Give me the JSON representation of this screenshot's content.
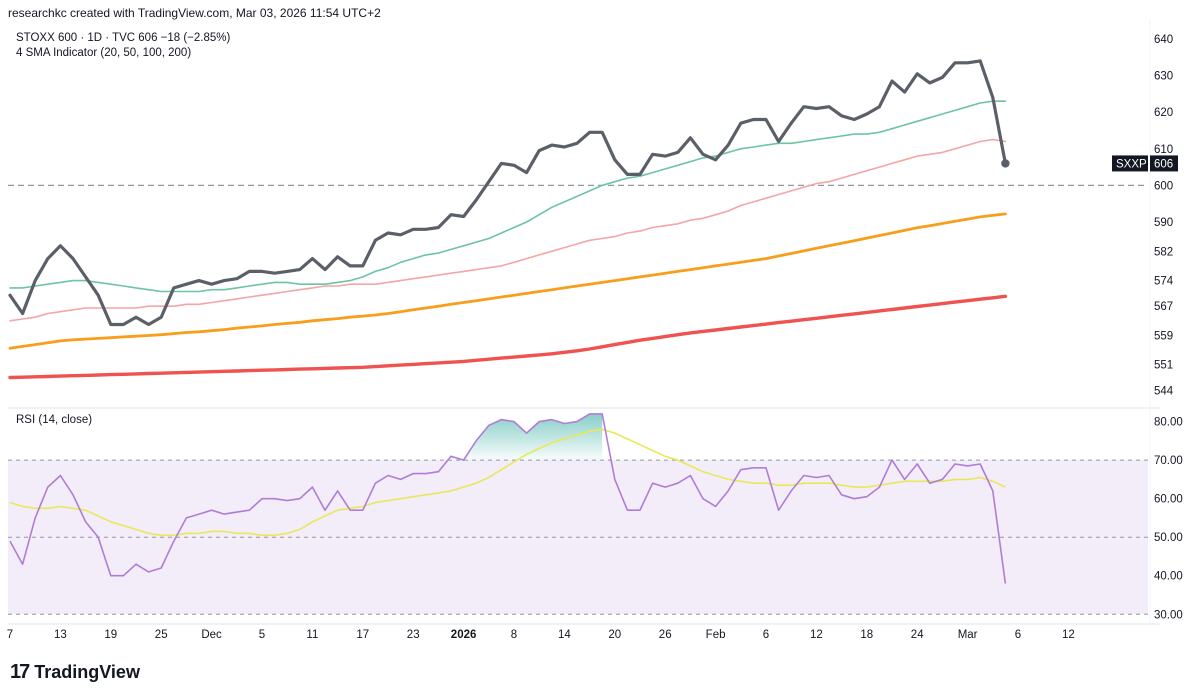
{
  "credit": "researchkc created with TradingView.com, Mar 03, 2026 11:54 UTC+2",
  "legend": {
    "symbol_line": "STOXX 600 · 1D · TVC  606  −18 (−2.85%)",
    "indicator_line": "4 SMA Indicator (20, 50, 100, 200)",
    "rsi_line": "RSI (14, close)"
  },
  "brand": {
    "name": "TradingView",
    "mark": "17"
  },
  "colors": {
    "price": "#5b5f68",
    "sma20": "#6cc4a4",
    "sma50": "#f4a6a6",
    "sma100": "#f79e1b",
    "sma200": "#ef5350",
    "rsi": "#b07dd6",
    "rsi_ma": "#e8e85a",
    "rsi_band": "#ede7f6"
  },
  "chart_data": [
    {
      "type": "line",
      "title": "STOXX 600 · 1D · TVC",
      "last_label": {
        "symbol": "SXXP",
        "value": "606"
      },
      "ylim": [
        540,
        643
      ],
      "y_ticks": [
        640,
        630,
        620,
        610,
        600,
        590,
        582,
        574,
        567,
        559,
        551,
        544
      ],
      "reference_line": 600,
      "x_ticks": [
        {
          "i": 0,
          "label": "7"
        },
        {
          "i": 4,
          "label": "13"
        },
        {
          "i": 8,
          "label": "19"
        },
        {
          "i": 12,
          "label": "25"
        },
        {
          "i": 16,
          "label": "Dec"
        },
        {
          "i": 20,
          "label": "5"
        },
        {
          "i": 24,
          "label": "11"
        },
        {
          "i": 28,
          "label": "17"
        },
        {
          "i": 32,
          "label": "23"
        },
        {
          "i": 36,
          "label": "2026"
        },
        {
          "i": 40,
          "label": "8"
        },
        {
          "i": 44,
          "label": "14"
        },
        {
          "i": 48,
          "label": "20"
        },
        {
          "i": 52,
          "label": "26"
        },
        {
          "i": 56,
          "label": "Feb"
        },
        {
          "i": 60,
          "label": "6"
        },
        {
          "i": 64,
          "label": "12"
        },
        {
          "i": 68,
          "label": "18"
        },
        {
          "i": 72,
          "label": "24"
        },
        {
          "i": 76,
          "label": "Mar"
        },
        {
          "i": 80,
          "label": "6"
        },
        {
          "i": 84,
          "label": "12"
        }
      ],
      "series": [
        {
          "name": "STOXX 600",
          "values": [
            570,
            565,
            574,
            580,
            583.5,
            580,
            575,
            570,
            562,
            562,
            564,
            562,
            564,
            572,
            573,
            574,
            573,
            574,
            574.5,
            576.5,
            576.5,
            576,
            576.5,
            577,
            580,
            577,
            580.5,
            578,
            578,
            585,
            587,
            586.5,
            588,
            588,
            588.5,
            592,
            591.5,
            596,
            601,
            606,
            605.5,
            603.5,
            609.5,
            611,
            610.5,
            611.5,
            614.5,
            614.5,
            607,
            603,
            603,
            608.5,
            608,
            609,
            613,
            608.5,
            607,
            611,
            617,
            618,
            618,
            612,
            617,
            621.5,
            621,
            621.5,
            619,
            618,
            619.5,
            621.5,
            628.5,
            625.5,
            630.5,
            628,
            629.5,
            633.5,
            633.5,
            634,
            624,
            606
          ]
        },
        {
          "name": "SMA 20",
          "values": [
            572,
            572,
            572.5,
            573,
            573.5,
            574,
            574,
            573.5,
            573,
            572.5,
            572,
            571.5,
            571,
            571,
            571,
            571,
            571.5,
            571.5,
            572,
            572.5,
            573,
            573.5,
            573.5,
            573,
            573,
            573,
            573.5,
            574,
            575,
            576.5,
            577.5,
            579,
            580,
            581,
            581.5,
            582.5,
            583.5,
            584.5,
            585.5,
            587,
            588.5,
            590,
            592,
            594,
            595.5,
            597,
            598.5,
            600,
            601,
            602,
            602.5,
            603.5,
            604.5,
            605.5,
            606.5,
            607.5,
            608,
            609,
            610,
            610.5,
            611,
            611.5,
            611.5,
            612,
            612.5,
            613,
            613.5,
            614,
            614,
            614.5,
            615.5,
            616.5,
            617.5,
            618.5,
            619.5,
            620.5,
            621.5,
            622.5,
            623,
            623
          ]
        },
        {
          "name": "SMA 50",
          "values": [
            563,
            563.5,
            564,
            565,
            565.5,
            566,
            566.5,
            566.5,
            566.5,
            566.5,
            566.5,
            567,
            567,
            567,
            567.5,
            567.5,
            568,
            568.5,
            569,
            569.5,
            570,
            570.5,
            571,
            571.5,
            572,
            572.5,
            572.5,
            573,
            573,
            573,
            573.5,
            574,
            574.5,
            575,
            575.5,
            576,
            576.5,
            577,
            577.5,
            578,
            579,
            580,
            581,
            582,
            583,
            584,
            585,
            585.5,
            586,
            587,
            587.5,
            588.5,
            589,
            589.5,
            590.5,
            591,
            592,
            593,
            594.5,
            595.5,
            596.5,
            597.5,
            598.5,
            599.5,
            600.5,
            601,
            602,
            603,
            604,
            605,
            606,
            607,
            608,
            608.5,
            609,
            610,
            611,
            612,
            612.5,
            612
          ]
        },
        {
          "name": "SMA 100",
          "values": [
            555.5,
            556,
            556.5,
            557,
            557.5,
            557.8,
            558,
            558.2,
            558.4,
            558.6,
            558.8,
            559,
            559.2,
            559.5,
            559.8,
            560,
            560.3,
            560.6,
            561,
            561.3,
            561.6,
            562,
            562.3,
            562.6,
            563,
            563.3,
            563.6,
            564,
            564.3,
            564.6,
            565,
            565.5,
            566,
            566.5,
            567,
            567.5,
            568,
            568.5,
            569,
            569.5,
            570,
            570.5,
            571,
            571.5,
            572,
            572.5,
            573,
            573.5,
            574,
            574.5,
            575,
            575.5,
            576,
            576.5,
            577,
            577.5,
            578,
            578.5,
            579,
            579.5,
            580,
            580.7,
            581.4,
            582.1,
            582.8,
            583.5,
            584.2,
            584.9,
            585.6,
            586.3,
            587,
            587.7,
            588.4,
            589,
            589.6,
            590.2,
            590.8,
            591.4,
            591.8,
            592.2
          ]
        },
        {
          "name": "SMA 200",
          "values": [
            547.5,
            547.6,
            547.7,
            547.8,
            547.9,
            548,
            548.1,
            548.2,
            548.3,
            548.4,
            548.5,
            548.6,
            548.7,
            548.8,
            548.9,
            549,
            549.1,
            549.2,
            549.3,
            549.4,
            549.5,
            549.6,
            549.7,
            549.8,
            549.9,
            550,
            550.1,
            550.2,
            550.3,
            550.5,
            550.7,
            550.9,
            551.1,
            551.3,
            551.5,
            551.7,
            551.9,
            552.2,
            552.5,
            552.8,
            553.1,
            553.4,
            553.7,
            554,
            554.4,
            554.8,
            555.3,
            555.9,
            556.5,
            557.1,
            557.7,
            558.2,
            558.7,
            559.2,
            559.7,
            560.1,
            560.5,
            560.9,
            561.3,
            561.7,
            562.1,
            562.5,
            562.9,
            563.3,
            563.7,
            564.1,
            564.5,
            564.9,
            565.3,
            565.7,
            566.1,
            566.5,
            566.9,
            567.3,
            567.7,
            568.1,
            568.5,
            568.9,
            569.3,
            569.7
          ]
        }
      ]
    },
    {
      "type": "line",
      "title": "RSI (14, close)",
      "ylim": [
        28,
        83
      ],
      "y_ticks": [
        "80.00",
        "70.00",
        "60.00",
        "50.00",
        "40.00",
        "30.00"
      ],
      "band": [
        30,
        70
      ],
      "midline": 50,
      "series": [
        {
          "name": "RSI",
          "values": [
            49,
            43,
            55,
            63,
            66,
            61,
            54,
            50,
            40,
            40,
            43,
            41,
            42,
            49,
            55,
            56,
            57,
            56,
            56.5,
            57,
            60,
            60,
            59.5,
            60,
            63,
            57,
            62,
            57,
            57,
            64,
            66,
            65,
            66.5,
            66.5,
            67,
            71,
            70,
            75,
            79,
            80.5,
            80,
            77,
            80,
            80.5,
            79.5,
            80,
            82,
            82,
            65,
            57,
            57,
            64,
            63,
            64,
            66,
            60,
            58,
            62,
            67.5,
            68,
            68,
            57,
            62,
            66,
            65.5,
            66,
            61,
            60,
            60.5,
            63,
            70,
            65,
            69,
            64,
            65,
            69,
            68.5,
            69,
            62,
            38
          ]
        },
        {
          "name": "RSI MA",
          "values": [
            59,
            58,
            57.5,
            57.5,
            58,
            57.5,
            57,
            55.5,
            54,
            53,
            52,
            51,
            50.5,
            50.5,
            51,
            51,
            51.5,
            51.5,
            51,
            51,
            50.5,
            50.5,
            51,
            52,
            54,
            55.5,
            57,
            57.5,
            58,
            59,
            59.5,
            60,
            60.5,
            61,
            61.5,
            62,
            63,
            64,
            65.5,
            67.5,
            69.5,
            71.5,
            73,
            74.5,
            75.5,
            76.5,
            77.5,
            78,
            77,
            75.5,
            74,
            72.5,
            71,
            70,
            68.5,
            67,
            66,
            65,
            64.5,
            64,
            64,
            63.5,
            63.5,
            64,
            64,
            64,
            63.5,
            63,
            63,
            63.5,
            64,
            64.5,
            64.5,
            64.5,
            64.5,
            65,
            65,
            65.5,
            64.5,
            63
          ]
        }
      ]
    }
  ]
}
